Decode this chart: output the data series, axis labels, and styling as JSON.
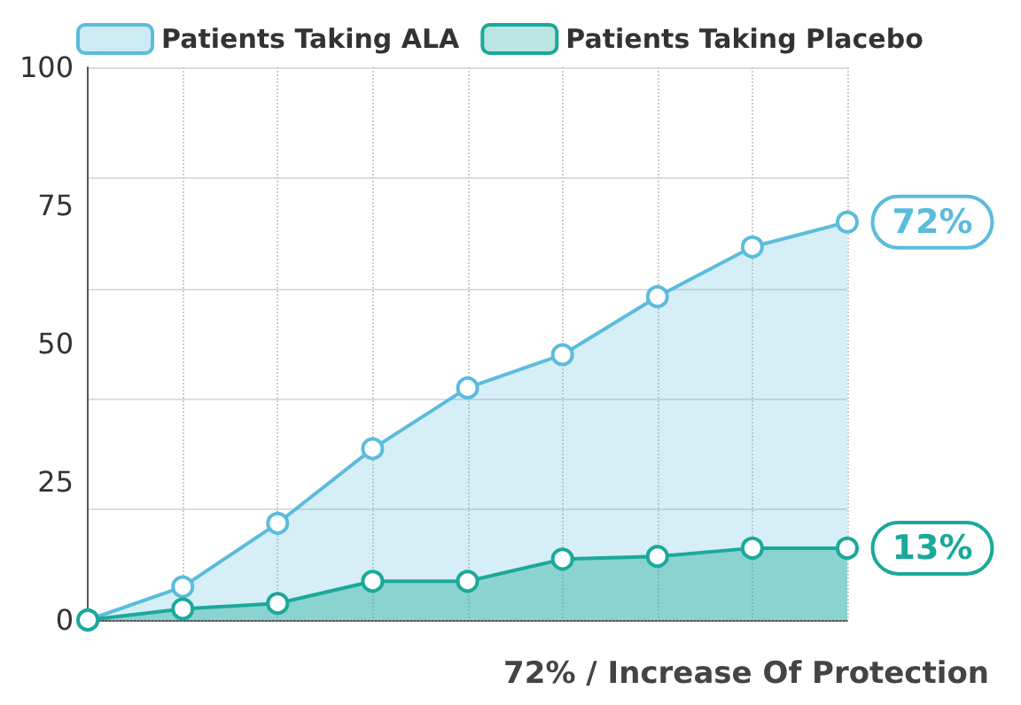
{
  "chart_data": {
    "type": "area",
    "xlabel": "72% / Increase Of Protection",
    "categories": [
      null,
      null,
      null,
      null,
      null,
      null,
      null,
      null,
      null
    ],
    "series": [
      {
        "name": "Patients Taking ALA",
        "color": "#5bbcdc",
        "values": [
          0,
          6,
          17.5,
          31,
          42,
          48,
          58.5,
          67.5,
          72
        ]
      },
      {
        "name": "Patients Taking Placebo",
        "color": "#1aa99a",
        "values": [
          0,
          2,
          3,
          7,
          7,
          11,
          11.5,
          13,
          13
        ]
      }
    ],
    "ylim": [
      0,
      100
    ],
    "yticks": [
      0,
      25,
      50,
      75,
      100
    ],
    "grid": true,
    "legend": "top",
    "marker": "circle",
    "line_style": "solid",
    "annotations": [
      "72%",
      "13%"
    ]
  }
}
